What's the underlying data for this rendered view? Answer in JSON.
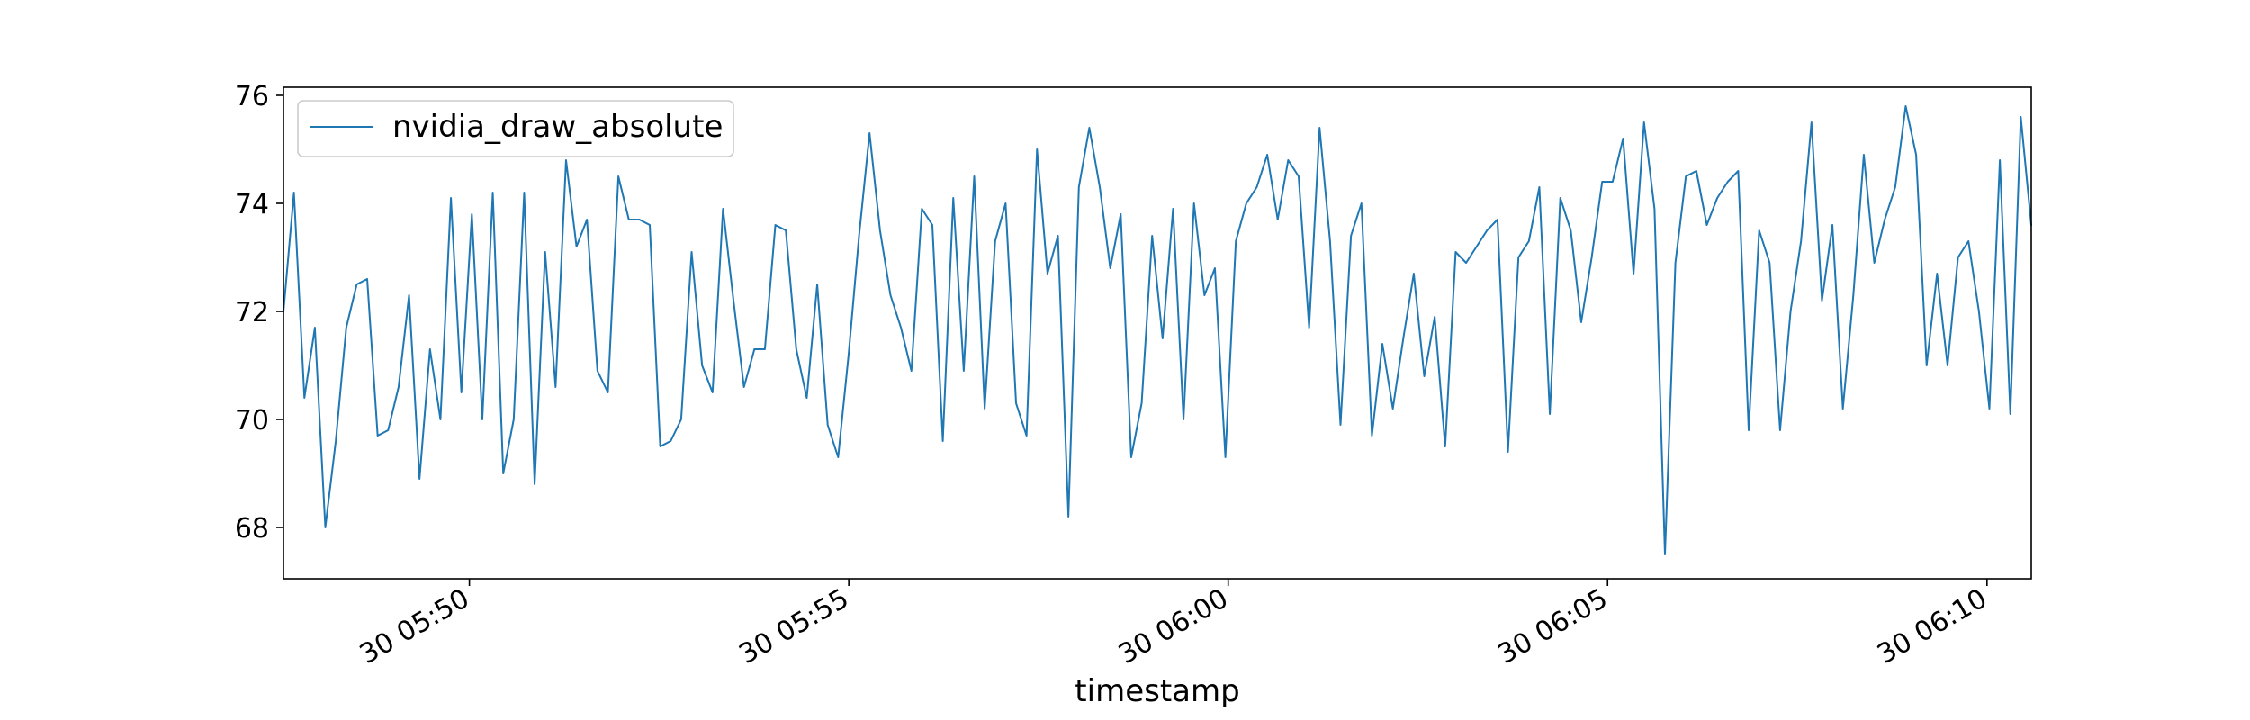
{
  "chart_data": {
    "type": "line",
    "title": "",
    "xlabel": "timestamp",
    "ylabel": "",
    "legend": {
      "placement": "upper left"
    },
    "grid": false,
    "ylim": [
      67.05,
      76.15
    ],
    "xlim": [
      "05:47:33",
      "06:10:35"
    ],
    "y_ticks": [
      {
        "value": 68,
        "label": "68"
      },
      {
        "value": 70,
        "label": "70"
      },
      {
        "value": 72,
        "label": "72"
      },
      {
        "value": 74,
        "label": "74"
      },
      {
        "value": 76,
        "label": "76"
      }
    ],
    "x_ticks": [
      {
        "time": "05:50:00",
        "label": "30 05:50"
      },
      {
        "time": "05:55:00",
        "label": "30 05:55"
      },
      {
        "time": "06:00:00",
        "label": "30 06:00"
      },
      {
        "time": "06:05:00",
        "label": "30 06:05"
      },
      {
        "time": "06:10:00",
        "label": "30 06:10"
      }
    ],
    "colors": {
      "series": "#1f77b4",
      "axes": "#000000"
    },
    "series": [
      {
        "name": "nvidia_draw_absolute",
        "x_start": "05:47:33",
        "x_end": "06:10:35",
        "values": [
          72.0,
          74.2,
          70.4,
          71.7,
          68.0,
          69.6,
          71.7,
          72.5,
          72.6,
          69.7,
          69.8,
          70.6,
          72.3,
          68.9,
          71.3,
          70.0,
          74.1,
          70.5,
          73.8,
          70.0,
          74.2,
          69.0,
          70.0,
          74.2,
          68.8,
          73.1,
          70.6,
          74.8,
          73.2,
          73.7,
          70.9,
          70.5,
          74.5,
          73.7,
          73.7,
          73.6,
          69.5,
          69.6,
          70.0,
          73.1,
          71.0,
          70.5,
          73.9,
          72.2,
          70.6,
          71.3,
          71.3,
          73.6,
          73.5,
          71.3,
          70.4,
          72.5,
          69.9,
          69.3,
          71.2,
          73.4,
          75.3,
          73.5,
          72.3,
          71.7,
          70.9,
          73.9,
          73.6,
          69.6,
          74.1,
          70.9,
          74.5,
          70.2,
          73.3,
          74.0,
          70.3,
          69.7,
          75.0,
          72.7,
          73.4,
          68.2,
          74.3,
          75.4,
          74.3,
          72.8,
          73.8,
          69.3,
          70.3,
          73.4,
          71.5,
          73.9,
          70.0,
          74.0,
          72.3,
          72.8,
          69.3,
          73.3,
          74.0,
          74.3,
          74.9,
          73.7,
          74.8,
          74.5,
          71.7,
          75.4,
          73.3,
          69.9,
          73.4,
          74.0,
          69.7,
          71.4,
          70.2,
          71.5,
          72.7,
          70.8,
          71.9,
          69.5,
          73.1,
          72.9,
          73.2,
          73.5,
          73.7,
          69.4,
          73.0,
          73.3,
          74.3,
          70.1,
          74.1,
          73.5,
          71.8,
          73.0,
          74.4,
          74.4,
          75.2,
          72.7,
          75.5,
          73.9,
          67.5,
          72.9,
          74.5,
          74.6,
          73.6,
          74.1,
          74.4,
          74.6,
          69.8,
          73.5,
          72.9,
          69.8,
          72.0,
          73.3,
          75.5,
          72.2,
          73.6,
          70.2,
          72.3,
          74.9,
          72.9,
          73.7,
          74.3,
          75.8,
          74.9,
          71.0,
          72.7,
          71.0,
          73.0,
          73.3,
          72.0,
          70.2,
          74.8,
          70.1,
          75.6,
          73.6
        ]
      }
    ]
  }
}
